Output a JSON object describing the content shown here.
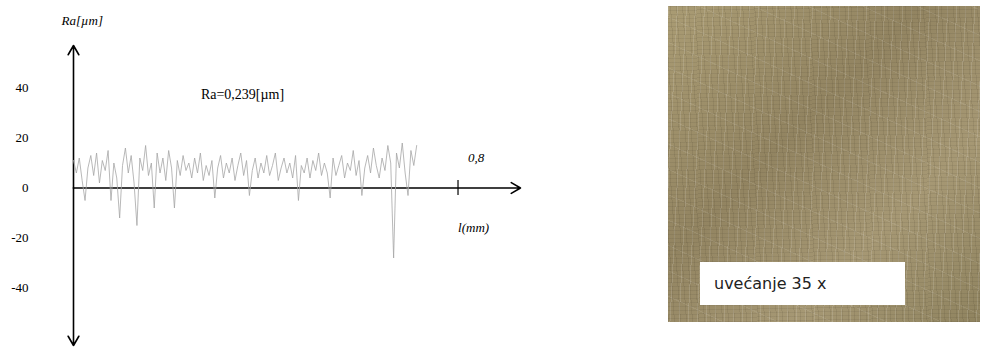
{
  "chart_data": {
    "type": "line",
    "ylabel": "Ra[µm]",
    "xlabel": "l(mm)",
    "annotations": [
      {
        "text": "Ra=0,239[µm]"
      }
    ],
    "x": [
      0,
      0.006,
      0.012,
      0.018,
      0.024,
      0.03,
      0.036,
      0.042,
      0.048,
      0.054,
      0.06,
      0.066,
      0.072,
      0.078,
      0.084,
      0.09,
      0.096,
      0.102,
      0.108,
      0.114,
      0.12,
      0.126,
      0.132,
      0.138,
      0.144,
      0.15,
      0.156,
      0.162,
      0.168,
      0.174,
      0.18,
      0.186,
      0.192,
      0.198,
      0.204,
      0.21,
      0.216,
      0.222,
      0.228,
      0.234,
      0.24,
      0.246,
      0.252,
      0.258,
      0.264,
      0.27,
      0.276,
      0.282,
      0.288,
      0.294,
      0.3,
      0.306,
      0.312,
      0.318,
      0.324,
      0.33,
      0.336,
      0.342,
      0.348,
      0.354,
      0.36,
      0.366,
      0.372,
      0.378,
      0.384,
      0.39,
      0.396,
      0.402,
      0.408,
      0.414,
      0.42,
      0.426,
      0.432,
      0.438,
      0.444,
      0.45,
      0.456,
      0.462,
      0.468,
      0.474,
      0.48,
      0.486,
      0.492,
      0.498,
      0.504,
      0.51,
      0.516,
      0.522,
      0.528,
      0.534,
      0.54,
      0.546,
      0.552,
      0.558,
      0.564,
      0.57,
      0.576,
      0.582,
      0.588,
      0.594,
      0.6,
      0.606,
      0.612,
      0.618,
      0.624,
      0.63,
      0.636,
      0.642,
      0.648,
      0.654,
      0.66,
      0.666,
      0.672,
      0.678,
      0.684,
      0.69,
      0.696,
      0.702,
      0.708,
      0.714
    ],
    "values": [
      11,
      6,
      12,
      3,
      -5,
      8,
      13,
      5,
      14,
      2,
      11,
      7,
      15,
      -5,
      10,
      4,
      -12,
      9,
      16,
      6,
      13,
      2,
      -15,
      12,
      7,
      17,
      5,
      10,
      -8,
      14,
      6,
      12,
      3,
      15,
      8,
      -8,
      11,
      5,
      13,
      7,
      10,
      4,
      12,
      6,
      14,
      3,
      9,
      5,
      11,
      -4,
      8,
      13,
      4,
      10,
      6,
      12,
      3,
      9,
      14,
      5,
      11,
      -3,
      7,
      12,
      4,
      10,
      6,
      13,
      5,
      9,
      14,
      3,
      8,
      12,
      6,
      10,
      4,
      13,
      -5,
      9,
      6,
      12,
      4,
      11,
      7,
      14,
      5,
      10,
      6,
      -4,
      12,
      5,
      9,
      13,
      4,
      10,
      7,
      15,
      5,
      11,
      -3,
      8,
      13,
      6,
      16,
      9,
      4,
      12,
      7,
      17,
      10,
      -28,
      14,
      8,
      18,
      6,
      -3,
      15,
      9,
      17
    ],
    "color": "#a6a6a6",
    "xlim": [
      0,
      0.93
    ],
    "ylim": [
      -63,
      57
    ],
    "xticks": [
      {
        "value": 0.8,
        "label": "0,8"
      }
    ],
    "yticks": [
      40,
      20,
      0,
      -20,
      -40
    ],
    "grid": false
  },
  "image": {
    "caption": "uvećanje 35 x"
  }
}
